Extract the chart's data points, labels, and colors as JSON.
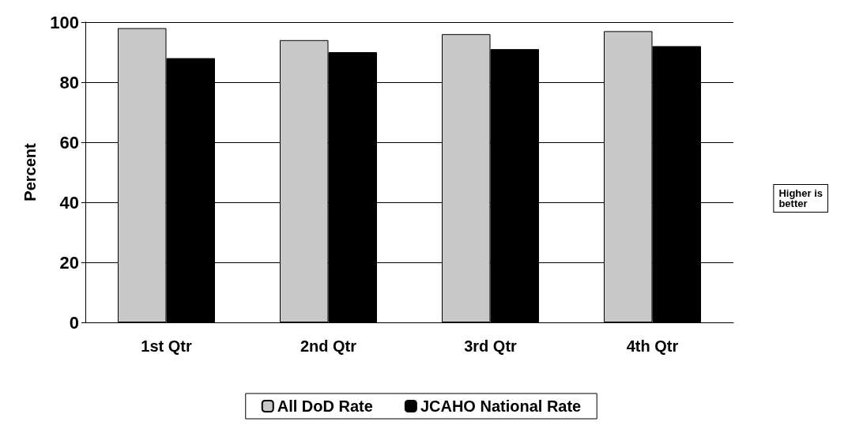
{
  "chart_data": {
    "type": "bar",
    "ylabel": "Percent",
    "categories": [
      "1st Qtr",
      "2nd Qtr",
      "3rd Qtr",
      "4th Qtr"
    ],
    "series": [
      {
        "name": "All DoD Rate",
        "color": "#c8c8c8",
        "values": [
          98,
          94,
          96,
          97
        ]
      },
      {
        "name": "JCAHO National Rate",
        "color": "#000000",
        "values": [
          88,
          90,
          91,
          92
        ]
      }
    ],
    "ylim": [
      0,
      100
    ],
    "yticks": [
      0,
      20,
      40,
      60,
      80,
      100
    ],
    "grid": "y",
    "legend": "bottom",
    "annotations": [
      "Higher is\nbetter"
    ]
  }
}
